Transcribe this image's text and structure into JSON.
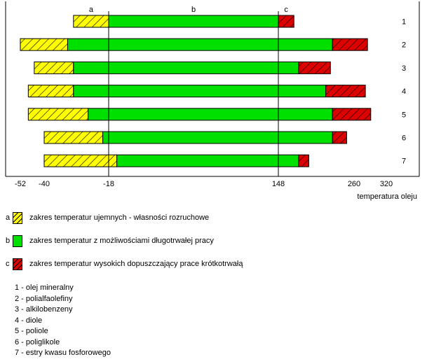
{
  "chart_data": {
    "type": "bar",
    "orientation": "horizontal-stacked-range",
    "xlabel": "temperatura oleju",
    "x_ticks": [
      -52,
      -40,
      -18,
      148,
      260,
      320
    ],
    "reference_lines": [
      -18,
      148
    ],
    "segment_labels": [
      "a",
      "b",
      "c"
    ],
    "colors": {
      "a": "#ffff00",
      "b": "#00e000",
      "c": "#dd0000",
      "hatch": "#000000",
      "axis": "#000000"
    },
    "series": [
      {
        "name": "1",
        "a": [
          -30,
          -18
        ],
        "b": [
          -18,
          148
        ],
        "c": [
          148,
          171
        ]
      },
      {
        "name": "2",
        "a": [
          -52,
          -32
        ],
        "b": [
          -32,
          228
        ],
        "c": [
          228,
          285
        ]
      },
      {
        "name": "3",
        "a": [
          -45,
          -30
        ],
        "b": [
          -30,
          178
        ],
        "c": [
          178,
          225
        ]
      },
      {
        "name": "4",
        "a": [
          -48,
          -30
        ],
        "b": [
          -30,
          218
        ],
        "c": [
          218,
          281
        ]
      },
      {
        "name": "5",
        "a": [
          -48,
          -25
        ],
        "b": [
          -25,
          228
        ],
        "c": [
          228,
          291
        ]
      },
      {
        "name": "6",
        "a": [
          -40,
          -20
        ],
        "b": [
          -20,
          228
        ],
        "c": [
          228,
          249
        ]
      },
      {
        "name": "7",
        "a": [
          -40,
          -10
        ],
        "b": [
          -10,
          178
        ],
        "c": [
          178,
          193
        ]
      }
    ]
  },
  "legend": [
    {
      "letter": "a",
      "color": "#ffff00",
      "hatched": true,
      "text": "zakres temperatur ujemnych - własności rozruchowe"
    },
    {
      "letter": "b",
      "color": "#00e000",
      "hatched": false,
      "text": "zakres temperatur z możliwościami długotrwałej pracy"
    },
    {
      "letter": "c",
      "color": "#dd0000",
      "hatched": true,
      "text": "zakres temperatur wysokich dopuszczający prace krótkotrwałą"
    }
  ],
  "notes": [
    "1 - olej mineralny",
    "2 - polialfaolefiny",
    "3 - alkilobenzeny",
    "4 - diole",
    "5 - poliole",
    "6 - poliglikole",
    "7 - estry kwasu fosforowego"
  ]
}
